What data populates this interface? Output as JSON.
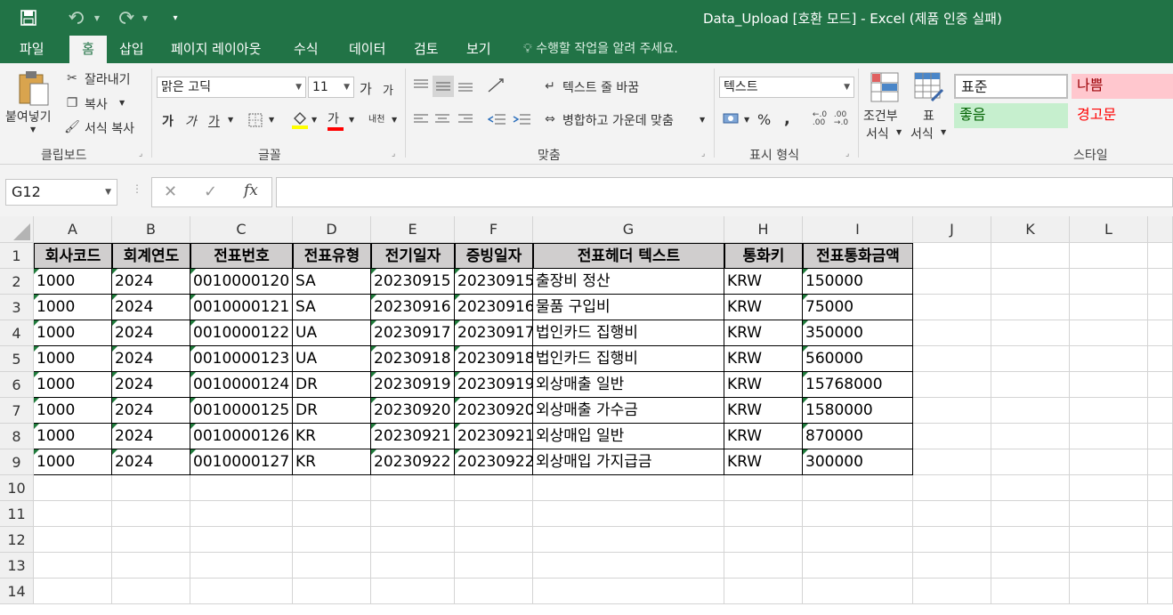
{
  "window": {
    "title": "Data_Upload  [호환 모드] - Excel (제품 인증 실패)",
    "save_icon": "save-icon",
    "undo_icon": "undo-icon",
    "redo_icon": "redo-icon",
    "customize_icon": "customize-quick-access-icon"
  },
  "tabs": [
    {
      "label": "파일"
    },
    {
      "label": "홈"
    },
    {
      "label": "삽입"
    },
    {
      "label": "페이지 레이아웃"
    },
    {
      "label": "수식"
    },
    {
      "label": "데이터"
    },
    {
      "label": "검토"
    },
    {
      "label": "보기"
    }
  ],
  "tell_me": "수행할 작업을 알려 주세요.",
  "ribbon": {
    "clipboard": {
      "paste": "붙여넣기",
      "cut": "잘라내기",
      "copy": "복사",
      "format_painter": "서식 복사",
      "label": "클립보드"
    },
    "font": {
      "name": "맑은 고딕",
      "size": "11",
      "grow": "가",
      "shrink": "가",
      "bold": "가",
      "italic": "가",
      "underline": "가",
      "font_color": "가",
      "phonetic": "내천",
      "label": "글꼴",
      "fill_color": "#ffff00",
      "text_color": "#ff0000"
    },
    "alignment": {
      "wrap": "텍스트 줄 바꿈",
      "merge": "병합하고 가운데 맞춤",
      "label": "맞춤"
    },
    "number": {
      "format": "텍스트",
      "percent": "%",
      "comma": ",",
      "label": "표시 형식"
    },
    "styles": {
      "conditional": [
        "조건부",
        "서식"
      ],
      "table": [
        "표",
        "서식"
      ],
      "normal": "표준",
      "bad": "나쁨",
      "good": "좋음",
      "warning": "경고문",
      "label": "스타일",
      "bad_bg": "#ffc7ce",
      "bad_fg": "#9c0006",
      "good_bg": "#c6efce",
      "good_fg": "#006100",
      "warning_fg": "#ff0000"
    }
  },
  "formula_bar": {
    "name_box": "G12",
    "cancel": "✕",
    "enter": "✓",
    "fx": "fx",
    "value": ""
  },
  "columns": [
    "A",
    "B",
    "C",
    "D",
    "E",
    "F",
    "G",
    "H",
    "I",
    "J",
    "K",
    "L"
  ],
  "rows": [
    "1",
    "2",
    "3",
    "4",
    "5",
    "6",
    "7",
    "8",
    "9",
    "10",
    "11",
    "12",
    "13",
    "14"
  ],
  "table": {
    "headers": [
      "회사코드",
      "회계연도",
      "전표번호",
      "전표유형",
      "전기일자",
      "증빙일자",
      "전표헤더 텍스트",
      "통화키",
      "전표통화금액"
    ],
    "rows": [
      [
        "1000",
        "2024",
        "0010000120",
        "SA",
        "20230915",
        "20230915",
        "출장비 정산",
        "KRW",
        "150000"
      ],
      [
        "1000",
        "2024",
        "0010000121",
        "SA",
        "20230916",
        "20230916",
        "물품 구입비",
        "KRW",
        "75000"
      ],
      [
        "1000",
        "2024",
        "0010000122",
        "UA",
        "20230917",
        "20230917",
        "법인카드 집행비",
        "KRW",
        "350000"
      ],
      [
        "1000",
        "2024",
        "0010000123",
        "UA",
        "20230918",
        "20230918",
        "법인카드 집행비",
        "KRW",
        "560000"
      ],
      [
        "1000",
        "2024",
        "0010000124",
        "DR",
        "20230919",
        "20230919",
        "외상매출 일반",
        "KRW",
        "15768000"
      ],
      [
        "1000",
        "2024",
        "0010000125",
        "DR",
        "20230920",
        "20230920",
        "외상매출 가수금",
        "KRW",
        "1580000"
      ],
      [
        "1000",
        "2024",
        "0010000126",
        "KR",
        "20230921",
        "20230921",
        "외상매입 일반",
        "KRW",
        "870000"
      ],
      [
        "1000",
        "2024",
        "0010000127",
        "KR",
        "20230922",
        "20230922",
        "외상매입 가지급금",
        "KRW",
        "300000"
      ]
    ]
  },
  "header_fill": "#d0cece",
  "text_number_indicator": "#1e7a3a"
}
